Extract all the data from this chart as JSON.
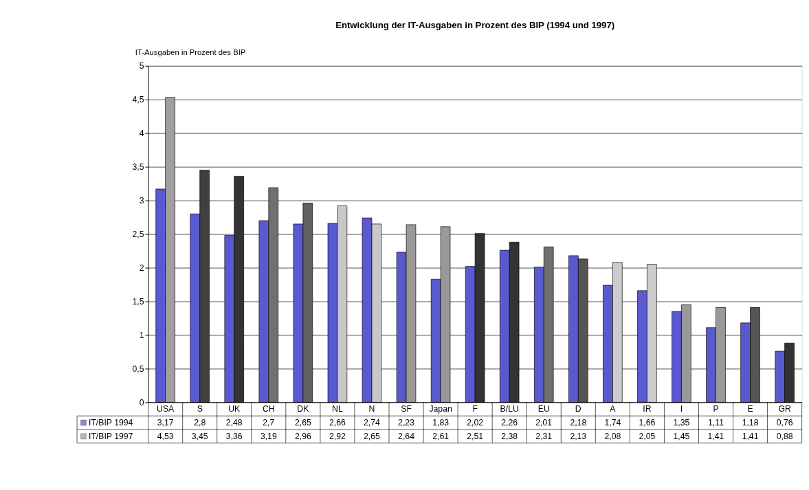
{
  "chart_data": {
    "type": "bar",
    "title": "Entwicklung der IT-Ausgaben in Prozent des BIP (1994 und 1997)",
    "ylabel": "IT-Ausgaben in Prozent des BIP",
    "categories": [
      "USA",
      "S",
      "UK",
      "CH",
      "DK",
      "NL",
      "N",
      "SF",
      "Japan",
      "F",
      "B/LU",
      "EU",
      "D",
      "A",
      "IR",
      "I",
      "P",
      "E",
      "GR"
    ],
    "series": [
      {
        "name": "IT/BIP 1994",
        "color": "#5a5ad0",
        "values": [
          3.17,
          2.8,
          2.48,
          2.7,
          2.65,
          2.66,
          2.74,
          2.23,
          1.83,
          2.02,
          2.26,
          2.01,
          2.18,
          1.74,
          1.66,
          1.35,
          1.11,
          1.18,
          0.76
        ],
        "value_labels": [
          "3,17",
          "2,8",
          "2,48",
          "2,7",
          "2,65",
          "2,66",
          "2,74",
          "2,23",
          "1,83",
          "2,02",
          "2,26",
          "2,01",
          "2,18",
          "1,74",
          "1,66",
          "1,35",
          "1,11",
          "1,18",
          "0,76"
        ]
      },
      {
        "name": "IT/BIP 1997",
        "color": "#999999",
        "colors": [
          "#a0a0a0",
          "#404040",
          "#333333",
          "#707070",
          "#606060",
          "#c8c8c8",
          "#c8c8c8",
          "#999999",
          "#999999",
          "#333333",
          "#333333",
          "#707070",
          "#555555",
          "#cccccc",
          "#cccccc",
          "#999999",
          "#999999",
          "#555555",
          "#333333"
        ],
        "values": [
          4.53,
          3.45,
          3.36,
          3.19,
          2.96,
          2.92,
          2.65,
          2.64,
          2.61,
          2.51,
          2.38,
          2.31,
          2.13,
          2.08,
          2.05,
          1.45,
          1.41,
          1.41,
          0.88
        ],
        "value_labels": [
          "4,53",
          "3,45",
          "3,36",
          "3,19",
          "2,96",
          "2,92",
          "2,65",
          "2,64",
          "2,61",
          "2,51",
          "2,38",
          "2,31",
          "2,13",
          "2,08",
          "2,05",
          "1,45",
          "1,41",
          "1,41",
          "0,88"
        ]
      }
    ],
    "ylim": [
      0,
      5
    ],
    "yticks": [
      0,
      {
        "value": 0.5,
        "label": "0,5"
      },
      1,
      {
        "value": 1.5,
        "label": "1,5"
      },
      2,
      {
        "value": 2.5,
        "label": "2,5"
      },
      3,
      {
        "value": 3.5,
        "label": "3,5"
      },
      4,
      {
        "value": 4.5,
        "label": "4,5"
      },
      5
    ],
    "grid": "y",
    "legend": "bottom left"
  }
}
